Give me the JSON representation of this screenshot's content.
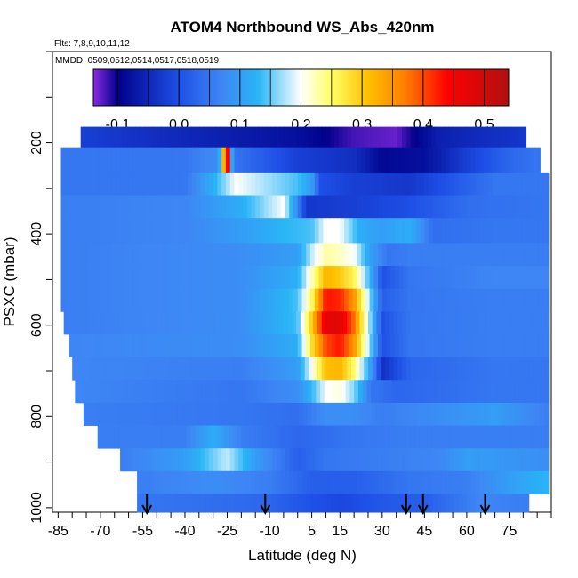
{
  "chart_data": {
    "type": "heatmap",
    "title": "ATOM4 Northbound WS_Abs_420nm",
    "subtitle_flights": "Flts: 7,8,9,10,11,12",
    "subtitle_dates": "MMDD: 0509,0512,0514,0517,0518,0519",
    "xlabel": "Latitude (deg N)",
    "ylabel": "PSXC (mbar)",
    "x_ticks": [
      -85,
      -70,
      -55,
      -40,
      -25,
      -10,
      5,
      15,
      30,
      45,
      60,
      75
    ],
    "x_tick_labels": [
      "-85",
      "-70",
      "-55",
      "-40",
      "-25",
      "-10",
      "5",
      "15",
      "30",
      "45",
      "60",
      "75"
    ],
    "y_ticks": [
      200,
      400,
      600,
      800,
      1000
    ],
    "y_tick_labels": [
      "200",
      "400",
      "600",
      "800",
      "1000"
    ],
    "xlim": [
      -87,
      90
    ],
    "ylim": [
      1010,
      0
    ],
    "colorbar": {
      "min": -0.14,
      "max": 0.54,
      "ticks": [
        -0.1,
        0.0,
        0.1,
        0.2,
        0.3,
        0.4,
        0.5
      ],
      "tick_labels": [
        "-0.1",
        "0.0",
        "0.1",
        "0.2",
        "0.3",
        "0.4",
        "0.5"
      ],
      "colors": [
        "#8a2be2",
        "#00008b",
        "#1e4fe6",
        "#3e86f5",
        "#29b5f6",
        "#ffffff",
        "#ffff66",
        "#ffc000",
        "#ff7f00",
        "#ff0000",
        "#b01010"
      ],
      "color_stops": [
        -0.14,
        -0.1,
        0.0,
        0.07,
        0.13,
        0.2,
        0.25,
        0.31,
        0.37,
        0.44,
        0.54
      ]
    },
    "arrow_latitudes": [
      -53.5,
      -11.5,
      38.5,
      44.5,
      66.5
    ],
    "pressure_bands": [
      {
        "p_top": 165,
        "p_bot": 210,
        "lat_min": -77,
        "lat_max": 81,
        "knots": [
          [
            -77,
            -0.02
          ],
          [
            -40,
            -0.05
          ],
          [
            0,
            -0.08
          ],
          [
            20,
            -0.12
          ],
          [
            35,
            -0.13
          ],
          [
            50,
            -0.06
          ],
          [
            70,
            -0.04
          ],
          [
            81,
            -0.03
          ]
        ]
      },
      {
        "p_top": 210,
        "p_bot": 265,
        "lat_min": -84,
        "lat_max": 86,
        "knots": [
          [
            -84,
            0.05
          ],
          [
            -40,
            0.05
          ],
          [
            -28,
            0.08
          ],
          [
            -25,
            0.5
          ],
          [
            -23,
            0.05
          ],
          [
            0,
            -0.02
          ],
          [
            20,
            -0.04
          ],
          [
            30,
            -0.09
          ],
          [
            45,
            -0.08
          ],
          [
            60,
            -0.02
          ],
          [
            75,
            0.03
          ],
          [
            86,
            0.05
          ]
        ]
      },
      {
        "p_top": 265,
        "p_bot": 315,
        "lat_min": -84,
        "lat_max": 89,
        "knots": [
          [
            -84,
            0.05
          ],
          [
            -40,
            0.05
          ],
          [
            -30,
            0.12
          ],
          [
            -22,
            0.2
          ],
          [
            0,
            0.14
          ],
          [
            5,
            0.1
          ],
          [
            8,
            0.0
          ],
          [
            20,
            -0.02
          ],
          [
            40,
            -0.03
          ],
          [
            70,
            0.05
          ],
          [
            89,
            0.05
          ]
        ]
      },
      {
        "p_top": 315,
        "p_bot": 365,
        "lat_min": -84,
        "lat_max": 89,
        "knots": [
          [
            -84,
            0.06
          ],
          [
            -40,
            0.07
          ],
          [
            -20,
            0.12
          ],
          [
            -5,
            0.2
          ],
          [
            -1,
            0.1
          ],
          [
            3,
            -0.03
          ],
          [
            20,
            -0.02
          ],
          [
            40,
            0.0
          ],
          [
            60,
            0.04
          ],
          [
            89,
            0.05
          ]
        ]
      },
      {
        "p_top": 365,
        "p_bot": 420,
        "lat_min": -84,
        "lat_max": 89,
        "knots": [
          [
            -84,
            0.06
          ],
          [
            -40,
            0.07
          ],
          [
            -20,
            0.1
          ],
          [
            -5,
            0.13
          ],
          [
            5,
            0.14
          ],
          [
            10,
            0.2
          ],
          [
            15,
            0.2
          ],
          [
            22,
            0.12
          ],
          [
            30,
            0.1
          ],
          [
            40,
            0.12
          ],
          [
            48,
            0.04
          ],
          [
            70,
            0.05
          ],
          [
            89,
            0.05
          ]
        ]
      },
      {
        "p_top": 420,
        "p_bot": 470,
        "lat_min": -84,
        "lat_max": 89,
        "knots": [
          [
            -84,
            0.06
          ],
          [
            -20,
            0.08
          ],
          [
            0,
            0.1
          ],
          [
            5,
            0.18
          ],
          [
            10,
            0.23
          ],
          [
            15,
            0.22
          ],
          [
            20,
            0.2
          ],
          [
            26,
            0.1
          ],
          [
            32,
            0.05
          ],
          [
            40,
            0.06
          ],
          [
            70,
            0.06
          ],
          [
            89,
            0.06
          ]
        ]
      },
      {
        "p_top": 470,
        "p_bot": 520,
        "lat_min": -84,
        "lat_max": 89,
        "knots": [
          [
            -84,
            0.06
          ],
          [
            -20,
            0.08
          ],
          [
            0,
            0.12
          ],
          [
            5,
            0.22
          ],
          [
            10,
            0.32
          ],
          [
            15,
            0.3
          ],
          [
            20,
            0.26
          ],
          [
            26,
            0.12
          ],
          [
            30,
            0.0
          ],
          [
            40,
            0.05
          ],
          [
            70,
            0.07
          ],
          [
            89,
            0.07
          ]
        ]
      },
      {
        "p_top": 520,
        "p_bot": 570,
        "lat_min": -84,
        "lat_max": 89,
        "knots": [
          [
            -84,
            0.06
          ],
          [
            -20,
            0.08
          ],
          [
            0,
            0.14
          ],
          [
            5,
            0.25
          ],
          [
            10,
            0.43
          ],
          [
            15,
            0.42
          ],
          [
            20,
            0.35
          ],
          [
            26,
            0.15
          ],
          [
            30,
            0.02
          ],
          [
            40,
            0.05
          ],
          [
            70,
            0.06
          ],
          [
            89,
            0.06
          ]
        ]
      },
      {
        "p_top": 570,
        "p_bot": 620,
        "lat_min": -83,
        "lat_max": 89,
        "knots": [
          [
            -83,
            0.06
          ],
          [
            -20,
            0.08
          ],
          [
            0,
            0.14
          ],
          [
            5,
            0.3
          ],
          [
            10,
            0.47
          ],
          [
            15,
            0.48
          ],
          [
            20,
            0.38
          ],
          [
            26,
            0.15
          ],
          [
            30,
            0.0
          ],
          [
            40,
            0.05
          ],
          [
            70,
            0.06
          ],
          [
            89,
            0.06
          ]
        ]
      },
      {
        "p_top": 620,
        "p_bot": 670,
        "lat_min": -81,
        "lat_max": 89,
        "knots": [
          [
            -81,
            0.07
          ],
          [
            -20,
            0.08
          ],
          [
            0,
            0.12
          ],
          [
            5,
            0.28
          ],
          [
            10,
            0.4
          ],
          [
            15,
            0.43
          ],
          [
            20,
            0.35
          ],
          [
            26,
            0.15
          ],
          [
            30,
            0.0
          ],
          [
            40,
            0.05
          ],
          [
            70,
            0.06
          ],
          [
            89,
            0.06
          ]
        ]
      },
      {
        "p_top": 670,
        "p_bot": 720,
        "lat_min": -80,
        "lat_max": 89,
        "knots": [
          [
            -80,
            0.07
          ],
          [
            -20,
            0.06
          ],
          [
            0,
            0.1
          ],
          [
            5,
            0.2
          ],
          [
            10,
            0.31
          ],
          [
            15,
            0.32
          ],
          [
            20,
            0.25
          ],
          [
            26,
            0.1
          ],
          [
            30,
            -0.04
          ],
          [
            40,
            0.03
          ],
          [
            70,
            0.05
          ],
          [
            89,
            0.05
          ]
        ]
      },
      {
        "p_top": 720,
        "p_bot": 770,
        "lat_min": -79,
        "lat_max": 89,
        "knots": [
          [
            -79,
            0.07
          ],
          [
            -20,
            0.05
          ],
          [
            0,
            0.08
          ],
          [
            5,
            0.13
          ],
          [
            10,
            0.2
          ],
          [
            15,
            0.21
          ],
          [
            20,
            0.16
          ],
          [
            26,
            0.05
          ],
          [
            35,
            0.03
          ],
          [
            70,
            0.05
          ],
          [
            89,
            0.05
          ]
        ]
      },
      {
        "p_top": 770,
        "p_bot": 820,
        "lat_min": -76,
        "lat_max": 89,
        "knots": [
          [
            -76,
            0.06
          ],
          [
            -20,
            0.05
          ],
          [
            0,
            0.04
          ],
          [
            10,
            0.08
          ],
          [
            20,
            0.08
          ],
          [
            30,
            0.06
          ],
          [
            50,
            0.08
          ],
          [
            70,
            0.1
          ],
          [
            89,
            0.06
          ]
        ]
      },
      {
        "p_top": 820,
        "p_bot": 870,
        "lat_min": -71,
        "lat_max": 89,
        "knots": [
          [
            -71,
            0.06
          ],
          [
            -40,
            0.06
          ],
          [
            -30,
            0.12
          ],
          [
            -20,
            0.06
          ],
          [
            0,
            0.03
          ],
          [
            20,
            0.05
          ],
          [
            40,
            0.06
          ],
          [
            60,
            0.06
          ],
          [
            89,
            0.06
          ]
        ]
      },
      {
        "p_top": 870,
        "p_bot": 920,
        "lat_min": -63,
        "lat_max": 89,
        "knots": [
          [
            -63,
            0.06
          ],
          [
            -40,
            0.1
          ],
          [
            -25,
            0.18
          ],
          [
            -15,
            0.1
          ],
          [
            0,
            0.02
          ],
          [
            10,
            0.05
          ],
          [
            30,
            0.06
          ],
          [
            50,
            0.07
          ],
          [
            60,
            0.1
          ],
          [
            89,
            0.08
          ]
        ]
      },
      {
        "p_top": 920,
        "p_bot": 970,
        "lat_min": -57,
        "lat_max": 89,
        "knots": [
          [
            -57,
            0.06
          ],
          [
            -30,
            0.08
          ],
          [
            -10,
            0.06
          ],
          [
            5,
            0.02
          ],
          [
            20,
            0.02
          ],
          [
            40,
            0.05
          ],
          [
            60,
            0.06
          ],
          [
            75,
            0.1
          ],
          [
            89,
            0.13
          ]
        ]
      },
      {
        "p_top": 970,
        "p_bot": 1010,
        "lat_min": -57,
        "lat_max": 82,
        "knots": [
          [
            -57,
            0.05
          ],
          [
            -30,
            0.04
          ],
          [
            -10,
            0.03
          ],
          [
            0,
            0.01
          ],
          [
            15,
            -0.01
          ],
          [
            30,
            0.01
          ],
          [
            45,
            0.02
          ],
          [
            65,
            0.07
          ],
          [
            82,
            0.06
          ]
        ]
      }
    ]
  }
}
